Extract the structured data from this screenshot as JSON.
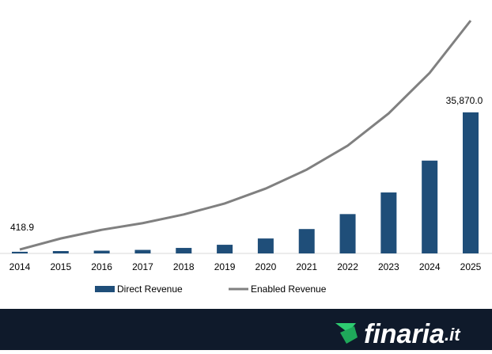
{
  "chart_data": {
    "type": "bar-line",
    "categories": [
      "2014",
      "2015",
      "2016",
      "2017",
      "2018",
      "2019",
      "2020",
      "2021",
      "2022",
      "2023",
      "2024",
      "2025"
    ],
    "series": [
      {
        "name": "Direct Revenue",
        "type": "bar",
        "color": "#1f4e79",
        "values": [
          418.9,
          600,
          700,
          900,
          1400,
          2200,
          3800,
          6200,
          10000,
          15500,
          23600,
          35870
        ],
        "value_labels": [
          "418.9",
          null,
          null,
          null,
          null,
          null,
          null,
          null,
          null,
          null,
          null,
          "35,870.0"
        ]
      },
      {
        "name": "Enabled Revenue",
        "type": "line",
        "color": "#808080",
        "values": [
          1000,
          3800,
          6000,
          7700,
          9900,
          12700,
          16500,
          21300,
          27400,
          35600,
          45900,
          59200
        ]
      }
    ]
  },
  "footer": {
    "logo": "finaria",
    "logo_suffix": ".it"
  }
}
